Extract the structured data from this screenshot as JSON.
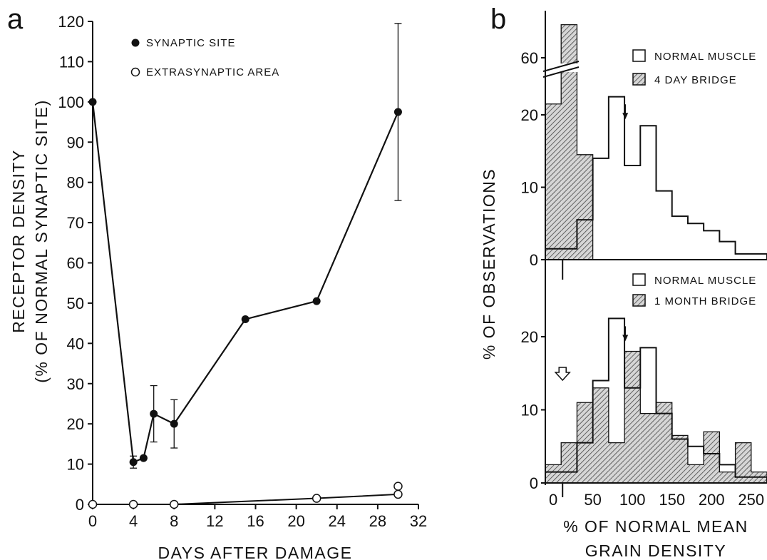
{
  "colors": {
    "ink": "#111111",
    "background": "#ffffff",
    "hatch": "#555555"
  },
  "chart_data": [
    {
      "panel_label": "a",
      "type": "line",
      "xlabel": "DAYS AFTER DAMAGE",
      "ylabel_lines": [
        "RECEPTOR DENSITY",
        "(% OF NORMAL SYNAPTIC SITE)"
      ],
      "xlim": [
        0,
        32
      ],
      "ylim": [
        0,
        120
      ],
      "xticks": [
        "0",
        "4",
        "8",
        "12",
        "16",
        "20",
        "24",
        "28",
        "32"
      ],
      "yticks": [
        "0",
        "10",
        "20",
        "30",
        "40",
        "50",
        "60",
        "70",
        "80",
        "90",
        "100",
        "110",
        "120"
      ],
      "legend_position": "top-left",
      "series": [
        {
          "name": "SYNAPTIC SITE",
          "marker": "filled-circle",
          "x": [
            0,
            4,
            5,
            6,
            8,
            15,
            22,
            30
          ],
          "y": [
            100,
            10.5,
            11.5,
            22.5,
            20,
            46,
            50.5,
            97.5
          ],
          "error": [
            null,
            1.5,
            null,
            7,
            6,
            null,
            null,
            22
          ]
        },
        {
          "name": "EXTRASYNAPTIC AREA",
          "marker": "open-circle",
          "x": [
            0,
            4,
            8,
            22,
            30,
            30
          ],
          "y": [
            0,
            0,
            0,
            1.5,
            4.5,
            2.5
          ]
        }
      ]
    },
    {
      "panel_label": "b",
      "type": "bar",
      "subtype": "histogram",
      "ylabel": "% OF OBSERVATIONS",
      "xlabel_lines": [
        "% OF NORMAL MEAN",
        "GRAIN DENSITY"
      ],
      "bin_width": 20,
      "xticks": [
        "0",
        "50",
        "100",
        "150",
        "200",
        "250"
      ],
      "yticks_top": [
        "0",
        "10",
        "20",
        "60"
      ],
      "yticks_bottom": [
        "0",
        "10",
        "20"
      ],
      "axis_break": "y between 25 and 55",
      "mean_arrow_x": 100,
      "open_arrow_x": 10,
      "top": {
        "legend": [
          "NORMAL MUSCLE",
          "4 DAY BRIDGE"
        ],
        "normal_muscle": {
          "bin_starts": [
            -10,
            10,
            30,
            50,
            70,
            90,
            110,
            130,
            150,
            170,
            190,
            210,
            230,
            250
          ],
          "values": [
            1.5,
            1.5,
            5.5,
            14,
            22.5,
            13,
            18.5,
            9.5,
            6,
            5,
            4,
            2.5,
            0.8,
            0.8
          ]
        },
        "four_day_bridge": {
          "bin_starts": [
            -10,
            10,
            30
          ],
          "values": [
            21.5,
            68,
            14.5
          ]
        }
      },
      "bottom": {
        "legend": [
          "NORMAL MUSCLE",
          "1 MONTH BRIDGE"
        ],
        "normal_muscle": {
          "bin_starts": [
            -10,
            10,
            30,
            50,
            70,
            90,
            110,
            130,
            150,
            170,
            190,
            210,
            230,
            250
          ],
          "values": [
            1.5,
            1.5,
            5.5,
            14,
            22.5,
            13,
            18.5,
            9.5,
            6,
            5,
            4,
            2.5,
            0.8,
            0.8
          ]
        },
        "one_month_bridge": {
          "bin_starts": [
            -10,
            10,
            30,
            50,
            70,
            90,
            110,
            130,
            150,
            170,
            190,
            210,
            230,
            250
          ],
          "values": [
            2.5,
            5.5,
            11,
            13,
            5.5,
            18,
            9.5,
            11,
            6.5,
            2.5,
            7,
            1.5,
            5.5,
            1.5
          ]
        }
      }
    }
  ]
}
